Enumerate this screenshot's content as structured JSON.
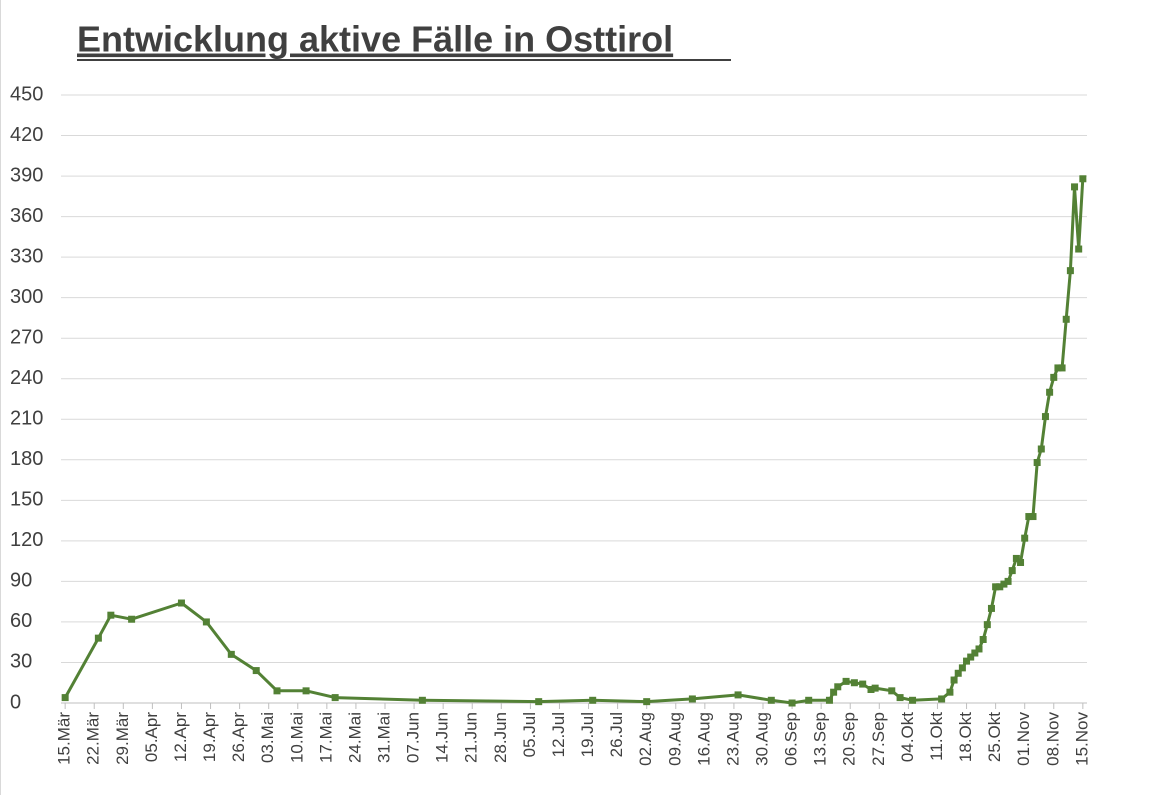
{
  "chart_data": {
    "type": "line",
    "title": "Entwicklung aktive Fälle in Osttirol",
    "color": "#538135",
    "x": [
      "03-15",
      "03-23",
      "03-26",
      "03-31",
      "04-12",
      "04-18",
      "04-24",
      "04-30",
      "05-05",
      "05-12",
      "05-19",
      "06-09",
      "07-07",
      "07-20",
      "08-02",
      "08-13",
      "08-24",
      "09-01",
      "09-06",
      "09-10",
      "09-15",
      "09-16",
      "09-17",
      "09-19",
      "09-21",
      "09-23",
      "09-25",
      "09-26",
      "09-30",
      "10-02",
      "10-05",
      "10-12",
      "10-14",
      "10-15",
      "10-16",
      "10-17",
      "10-18",
      "10-19",
      "10-20",
      "10-21",
      "10-22",
      "10-23",
      "10-24",
      "10-25",
      "10-26",
      "10-27",
      "10-28",
      "10-29",
      "10-30",
      "10-31",
      "11-01",
      "11-02",
      "11-03",
      "11-04",
      "11-05",
      "11-06",
      "11-07",
      "11-08",
      "11-09",
      "11-10",
      "11-11",
      "11-12",
      "11-13",
      "11-14",
      "11-15"
    ],
    "values": [
      4,
      48,
      65,
      62,
      74,
      60,
      36,
      24,
      9,
      9,
      4,
      2,
      1,
      2,
      1,
      3,
      6,
      2,
      0,
      2,
      2,
      8,
      12,
      16,
      15,
      14,
      10,
      11,
      9,
      4,
      2,
      3,
      8,
      17,
      22,
      26,
      31,
      34,
      37,
      40,
      47,
      58,
      70,
      86,
      86,
      88,
      90,
      98,
      107,
      104,
      122,
      138,
      138,
      178,
      188,
      212,
      230,
      241,
      248,
      248,
      284,
      320,
      382,
      336,
      388
    ],
    "xlim": [
      "03-14",
      "11-16"
    ],
    "xticks": [
      {
        "value": "03-15",
        "label": "15.Mär"
      },
      {
        "value": "03-22",
        "label": "22.Mär"
      },
      {
        "value": "03-29",
        "label": "29.Mär"
      },
      {
        "value": "04-05",
        "label": "05.Apr"
      },
      {
        "value": "04-12",
        "label": "12.Apr"
      },
      {
        "value": "04-19",
        "label": "19.Apr"
      },
      {
        "value": "04-26",
        "label": "26.Apr"
      },
      {
        "value": "05-03",
        "label": "03.Mai"
      },
      {
        "value": "05-10",
        "label": "10.Mai"
      },
      {
        "value": "05-17",
        "label": "17.Mai"
      },
      {
        "value": "05-24",
        "label": "24.Mai"
      },
      {
        "value": "05-31",
        "label": "31.Mai"
      },
      {
        "value": "06-07",
        "label": "07.Jun"
      },
      {
        "value": "06-14",
        "label": "14.Jun"
      },
      {
        "value": "06-21",
        "label": "21.Jun"
      },
      {
        "value": "06-28",
        "label": "28.Jun"
      },
      {
        "value": "07-05",
        "label": "05.Jul"
      },
      {
        "value": "07-12",
        "label": "12.Jul"
      },
      {
        "value": "07-19",
        "label": "19.Jul"
      },
      {
        "value": "07-26",
        "label": "26.Jul"
      },
      {
        "value": "08-02",
        "label": "02.Aug"
      },
      {
        "value": "08-09",
        "label": "09.Aug"
      },
      {
        "value": "08-16",
        "label": "16.Aug"
      },
      {
        "value": "08-23",
        "label": "23.Aug"
      },
      {
        "value": "08-30",
        "label": "30.Aug"
      },
      {
        "value": "09-06",
        "label": "06.Sep"
      },
      {
        "value": "09-13",
        "label": "13.Sep"
      },
      {
        "value": "09-20",
        "label": "20.Sep"
      },
      {
        "value": "09-27",
        "label": "27.Sep"
      },
      {
        "value": "10-04",
        "label": "04.Okt"
      },
      {
        "value": "10-11",
        "label": "11.Okt"
      },
      {
        "value": "10-18",
        "label": "18.Okt"
      },
      {
        "value": "10-25",
        "label": "25.Okt"
      },
      {
        "value": "11-01",
        "label": "01.Nov"
      },
      {
        "value": "11-08",
        "label": "08.Nov"
      },
      {
        "value": "11-15",
        "label": "15.Nov"
      }
    ],
    "ylim": [
      0,
      450
    ],
    "yticks": [
      0,
      30,
      60,
      90,
      120,
      150,
      180,
      210,
      240,
      270,
      300,
      330,
      360,
      390,
      420,
      450
    ],
    "grid": true
  }
}
